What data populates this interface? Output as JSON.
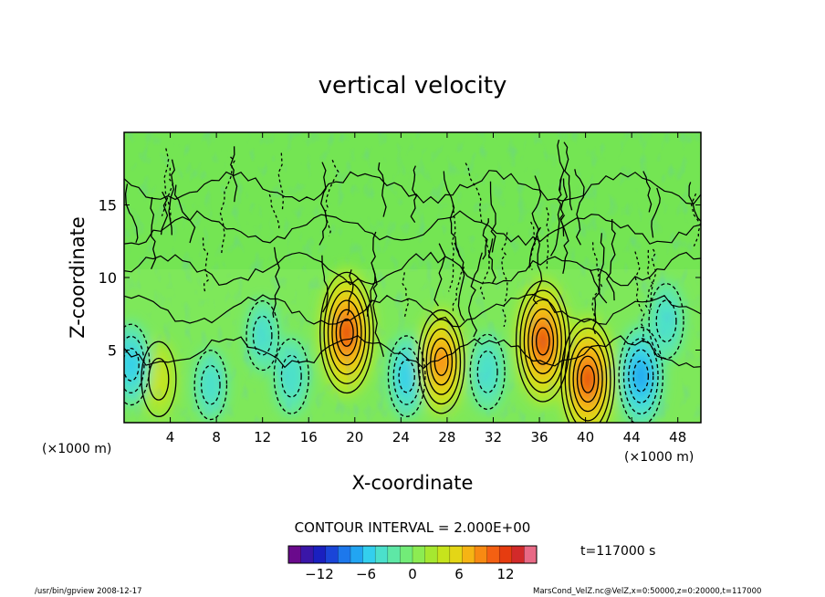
{
  "chart_data": {
    "type": "heatmap",
    "title": "vertical velocity",
    "xlabel": "X-coordinate",
    "ylabel": "Z-coordinate",
    "x_unit_left": "(×1000 m)",
    "x_unit_right": "(×1000 m)",
    "xlim": [
      0,
      50
    ],
    "ylim": [
      0,
      20
    ],
    "x_ticks": [
      4,
      8,
      12,
      16,
      20,
      24,
      28,
      32,
      36,
      40,
      44,
      48
    ],
    "y_ticks": [
      5,
      10,
      15
    ],
    "contour_interval_text": "CONTOUR INTERVAL = 2.000E+00",
    "colorbar": {
      "range": [
        -16,
        16
      ],
      "ticks": [
        -12,
        -6,
        0,
        6,
        12
      ],
      "colors": [
        "#6a0a8c",
        "#3a16a8",
        "#1a20c0",
        "#1a45d8",
        "#1d78ec",
        "#22a5f2",
        "#33cfee",
        "#4be0cc",
        "#5ee8a6",
        "#72ec78",
        "#8cec52",
        "#a6e830",
        "#c6e41c",
        "#e4d616",
        "#f6b414",
        "#f88a12",
        "#f46012",
        "#e63c10",
        "#d22a2a",
        "#e86a86"
      ]
    },
    "time_label": "t=117000 s",
    "features": [
      {
        "x": 3,
        "z": 3,
        "w": 4
      },
      {
        "x": 0.6,
        "z": 4,
        "w": -5
      },
      {
        "x": 7.5,
        "z": 2.6,
        "w": -3
      },
      {
        "x": 14.5,
        "z": 3.2,
        "w": -4
      },
      {
        "x": 19.3,
        "z": 6.2,
        "w": 12
      },
      {
        "x": 24.5,
        "z": 3.2,
        "w": -5
      },
      {
        "x": 27.5,
        "z": 4.2,
        "w": 9
      },
      {
        "x": 31.5,
        "z": 3.5,
        "w": -4
      },
      {
        "x": 36.3,
        "z": 5.6,
        "w": 12
      },
      {
        "x": 40.2,
        "z": 3.0,
        "w": 12
      },
      {
        "x": 44.8,
        "z": 3.2,
        "w": -8
      },
      {
        "x": 12,
        "z": 6,
        "w": -3
      },
      {
        "x": 47,
        "z": 7,
        "w": -4
      }
    ]
  },
  "footer": {
    "left": "/usr/bin/gpview   2008-12-17",
    "right": "MarsCond_VelZ.nc@VelZ,x=0:50000,z=0:20000,t=117000"
  }
}
